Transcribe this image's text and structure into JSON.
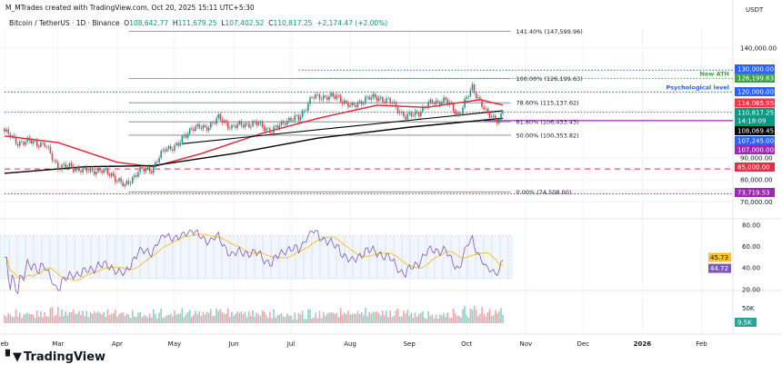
{
  "header": {
    "credit": "M_MTrades created with TradingView.com, Oct 20, 2025 15:11 UTC+5:30",
    "symbol": "Bitcoin / TetherUS · 1D · Binance",
    "open_label": "O",
    "open": "108,642.77",
    "high_label": "H",
    "high": "111,679.25",
    "low_label": "L",
    "low": "107,402.52",
    "close_label": "C",
    "close": "110,817.25",
    "change": "+2,174.47 (+2.00%)"
  },
  "branding": {
    "logo_text": "TradingView"
  },
  "chart_data": {
    "type": "candlestick",
    "currency": "USDT",
    "x_ticks": [
      {
        "label": "eb",
        "date": "2025-02-01"
      },
      {
        "label": "Mar",
        "date": "2025-03-01"
      },
      {
        "label": "Apr",
        "date": "2025-04-01"
      },
      {
        "label": "May",
        "date": "2025-05-01"
      },
      {
        "label": "Jun",
        "date": "2025-06-01"
      },
      {
        "label": "Jul",
        "date": "2025-07-01"
      },
      {
        "label": "Aug",
        "date": "2025-08-01"
      },
      {
        "label": "Sep",
        "date": "2025-09-01"
      },
      {
        "label": "Oct",
        "date": "2025-10-01"
      },
      {
        "label": "Nov",
        "date": "2025-11-01"
      },
      {
        "label": "Dec",
        "date": "2025-12-01"
      },
      {
        "label": "2026",
        "date": "2026-01-01"
      },
      {
        "label": "Feb",
        "date": "2026-02-01"
      }
    ],
    "price_ticks": [
      "140,000.00",
      "90,000.00",
      "80,000.00",
      "70,000.00"
    ],
    "price_tick_values": [
      140000,
      90000,
      80000,
      70000
    ],
    "price_range": [
      68000,
      147600
    ],
    "weekly_closes": [
      {
        "date": "2025-02-01",
        "close": 102000
      },
      {
        "date": "2025-02-08",
        "close": 97000
      },
      {
        "date": "2025-02-15",
        "close": 97500
      },
      {
        "date": "2025-02-22",
        "close": 96000
      },
      {
        "date": "2025-03-01",
        "close": 86000
      },
      {
        "date": "2025-03-08",
        "close": 86000
      },
      {
        "date": "2025-03-15",
        "close": 84000
      },
      {
        "date": "2025-03-22",
        "close": 84500
      },
      {
        "date": "2025-03-29",
        "close": 82500
      },
      {
        "date": "2025-04-05",
        "close": 77000
      },
      {
        "date": "2025-04-12",
        "close": 84000
      },
      {
        "date": "2025-04-19",
        "close": 85000
      },
      {
        "date": "2025-04-26",
        "close": 94000
      },
      {
        "date": "2025-05-03",
        "close": 96000
      },
      {
        "date": "2025-05-10",
        "close": 104000
      },
      {
        "date": "2025-05-17",
        "close": 103500
      },
      {
        "date": "2025-05-24",
        "close": 108000
      },
      {
        "date": "2025-05-31",
        "close": 104000
      },
      {
        "date": "2025-06-07",
        "close": 105500
      },
      {
        "date": "2025-06-14",
        "close": 105500
      },
      {
        "date": "2025-06-21",
        "close": 102000
      },
      {
        "date": "2025-06-28",
        "close": 107000
      },
      {
        "date": "2025-07-05",
        "close": 108000
      },
      {
        "date": "2025-07-12",
        "close": 117500
      },
      {
        "date": "2025-07-19",
        "close": 118000
      },
      {
        "date": "2025-07-26",
        "close": 117500
      },
      {
        "date": "2025-08-02",
        "close": 113000
      },
      {
        "date": "2025-08-09",
        "close": 117000
      },
      {
        "date": "2025-08-16",
        "close": 117500
      },
      {
        "date": "2025-08-23",
        "close": 115000
      },
      {
        "date": "2025-08-30",
        "close": 108500
      },
      {
        "date": "2025-09-06",
        "close": 111000
      },
      {
        "date": "2025-09-13",
        "close": 115500
      },
      {
        "date": "2025-09-20",
        "close": 116000
      },
      {
        "date": "2025-09-27",
        "close": 109500
      },
      {
        "date": "2025-10-04",
        "close": 122500
      },
      {
        "date": "2025-10-11",
        "close": 110500
      },
      {
        "date": "2025-10-18",
        "close": 107000
      },
      {
        "date": "2025-10-20",
        "close": 110817.25
      }
    ],
    "moving_averages": [
      {
        "color": "#e0202e",
        "points": [
          {
            "date": "2025-02-01",
            "value": 100000
          },
          {
            "date": "2025-03-01",
            "value": 97000
          },
          {
            "date": "2025-04-01",
            "value": 88000
          },
          {
            "date": "2025-04-20",
            "value": 86000
          },
          {
            "date": "2025-05-15",
            "value": 92000
          },
          {
            "date": "2025-06-15",
            "value": 101000
          },
          {
            "date": "2025-07-15",
            "value": 108000
          },
          {
            "date": "2025-08-15",
            "value": 114000
          },
          {
            "date": "2025-09-10",
            "value": 113000
          },
          {
            "date": "2025-10-08",
            "value": 116500
          },
          {
            "date": "2025-10-20",
            "value": 114065.95
          }
        ]
      },
      {
        "color": "#000000",
        "points": [
          {
            "date": "2025-02-01",
            "value": 83000
          },
          {
            "date": "2025-03-15",
            "value": 86000
          },
          {
            "date": "2025-04-20",
            "value": 86500
          },
          {
            "date": "2025-06-01",
            "value": 92000
          },
          {
            "date": "2025-07-15",
            "value": 99000
          },
          {
            "date": "2025-09-01",
            "value": 104000
          },
          {
            "date": "2025-10-20",
            "value": 108069.45
          }
        ]
      }
    ],
    "trendline": {
      "color": "#000000",
      "from": {
        "date": "2025-05-05",
        "value": 96500
      },
      "to": {
        "date": "2025-10-20",
        "value": 111500
      }
    },
    "fibonacci": [
      {
        "label": "141.40% (147,599.96)",
        "value": 147599.96
      },
      {
        "label": "100.00% (126,199.63)",
        "value": 126199.63
      },
      {
        "label": "78.60% (115,137.62)",
        "value": 115137.62
      },
      {
        "label": "61.80% (106,453.43)",
        "value": 106453.43
      },
      {
        "label": "50.00% (100,353.82)",
        "value": 100353.82
      },
      {
        "label": "0.00% (74,508.00)",
        "value": 74508
      }
    ],
    "levels": [
      {
        "value": 130000,
        "label": "130,000.00",
        "color": "#2962ff",
        "style": "dotted",
        "from": "2025-07-05"
      },
      {
        "value": 126199.63,
        "label": "126,199.63",
        "color": "#43a047",
        "style": "dotted",
        "from": "2025-07-05",
        "note": "New ATH"
      },
      {
        "value": 120000,
        "label": "120,000.00",
        "color": "#2962ff",
        "style": "dotted",
        "from": "2025-02-01",
        "note": "Psychological level"
      },
      {
        "value": 114065.95,
        "label": "114,065.95",
        "color": "#f23645",
        "style": "none"
      },
      {
        "value": 110817.25,
        "label": "110,817.25",
        "sublabel": "14:18:09",
        "color": "#089981",
        "style": "dotted",
        "from": "2025-02-01"
      },
      {
        "value": 108069.45,
        "label": "108,069.45",
        "color": "#000000",
        "style": "none"
      },
      {
        "value": 107245,
        "label": "107,245.00",
        "color": "#2962ff",
        "style": "none"
      },
      {
        "value": 107000,
        "label": "107,000.00",
        "color": "#9c27b0",
        "style": "solid",
        "from": "2025-10-10"
      },
      {
        "value": 85000,
        "label": "85,000.00",
        "color": "#e03047",
        "style": "dashed",
        "from": "2025-02-01"
      },
      {
        "value": 73719.53,
        "label": "73,719.53",
        "color": "#9c27b0",
        "style": "dotted",
        "from": "2025-02-01"
      }
    ],
    "rsi": {
      "ticks": [
        "80.00",
        "60.00",
        "40.00",
        "20.00"
      ],
      "tick_values": [
        80,
        60,
        40,
        20
      ],
      "band": [
        30,
        70
      ],
      "value": "44.72",
      "ma_value": "45.73",
      "value_color": "#7e57c2",
      "ma_color": "#f7c325"
    },
    "volume": {
      "ticks": [
        "50K"
      ],
      "value": "9.5K",
      "value_color": "#26a69a"
    }
  }
}
